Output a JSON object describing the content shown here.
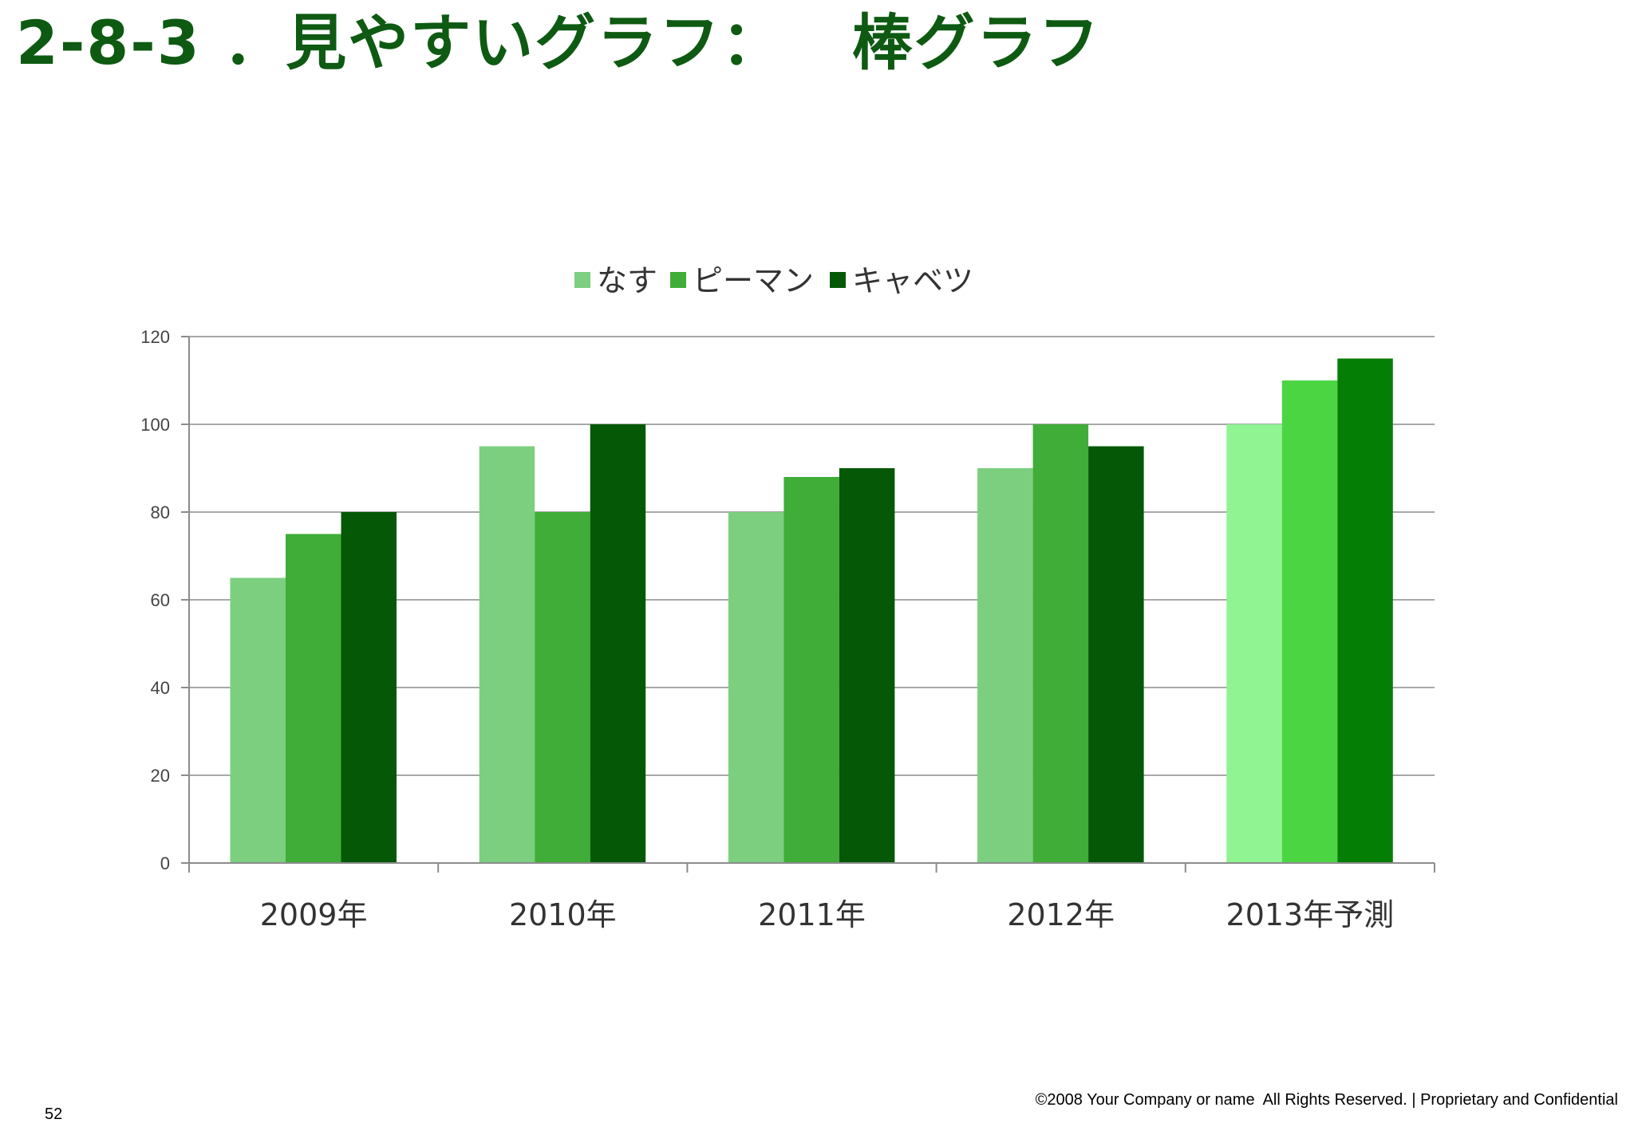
{
  "slide": {
    "title": "2-8-3 ．見やすいグラフ：   棒グラフ",
    "page_number": "52",
    "footer": "©2008 Your Company or name  All Rights Reserved. | Proprietary and Confidential"
  },
  "chart_data": {
    "type": "bar",
    "categories": [
      "2009年",
      "2010年",
      "2011年",
      "2012年",
      "2013年予測"
    ],
    "series": [
      {
        "name": "なす",
        "values": [
          65,
          95,
          80,
          90,
          100
        ],
        "color": "#7ccf7f",
        "forecast_color": "#90f493"
      },
      {
        "name": "ピーマン",
        "values": [
          75,
          80,
          88,
          100,
          110
        ],
        "color": "#3fad37",
        "forecast_color": "#4bd543"
      },
      {
        "name": "キャベツ",
        "values": [
          80,
          100,
          90,
          95,
          115
        ],
        "color": "#055805",
        "forecast_color": "#057e05"
      }
    ],
    "forecast_category_index": 4,
    "yticks": [
      0,
      20,
      40,
      60,
      80,
      100,
      120
    ],
    "ylim": [
      0,
      120
    ],
    "grid": true,
    "legend": "top-center",
    "title": "",
    "xlabel": "",
    "ylabel": ""
  }
}
